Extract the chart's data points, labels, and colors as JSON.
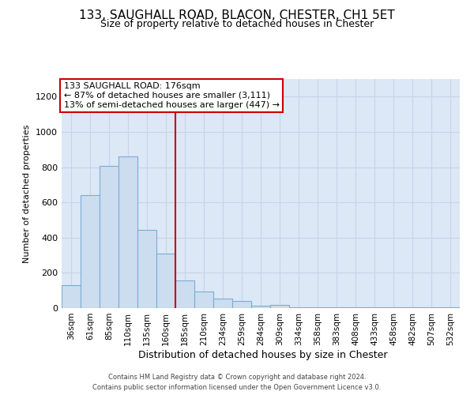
{
  "title1": "133, SAUGHALL ROAD, BLACON, CHESTER, CH1 5ET",
  "title2": "Size of property relative to detached houses in Chester",
  "xlabel": "Distribution of detached houses by size in Chester",
  "ylabel": "Number of detached properties",
  "categories": [
    "36sqm",
    "61sqm",
    "85sqm",
    "110sqm",
    "135sqm",
    "160sqm",
    "185sqm",
    "210sqm",
    "234sqm",
    "259sqm",
    "284sqm",
    "309sqm",
    "334sqm",
    "358sqm",
    "383sqm",
    "408sqm",
    "433sqm",
    "458sqm",
    "482sqm",
    "507sqm",
    "532sqm"
  ],
  "values": [
    130,
    640,
    805,
    860,
    445,
    308,
    155,
    95,
    55,
    40,
    15,
    20,
    5,
    5,
    5,
    5,
    5,
    5,
    5,
    5,
    5
  ],
  "bar_color": "#ccddf0",
  "bar_edge_color": "#7aacd4",
  "grid_color": "#c8d4e8",
  "background_color": "#dce8f5",
  "annotation_box_color": "#ffffff",
  "annotation_border_color": "#cc0000",
  "vline_color": "#cc0000",
  "vline_x_idx": 5.5,
  "annotation_line1": "133 SAUGHALL ROAD: 176sqm",
  "annotation_line2": "← 87% of detached houses are smaller (3,111)",
  "annotation_line3": "13% of semi-detached houses are larger (447) →",
  "ylim": [
    0,
    1300
  ],
  "yticks": [
    0,
    200,
    400,
    600,
    800,
    1000,
    1200
  ],
  "title1_fontsize": 11,
  "title2_fontsize": 9,
  "footer1": "Contains HM Land Registry data © Crown copyright and database right 2024.",
  "footer2": "Contains public sector information licensed under the Open Government Licence v3.0."
}
